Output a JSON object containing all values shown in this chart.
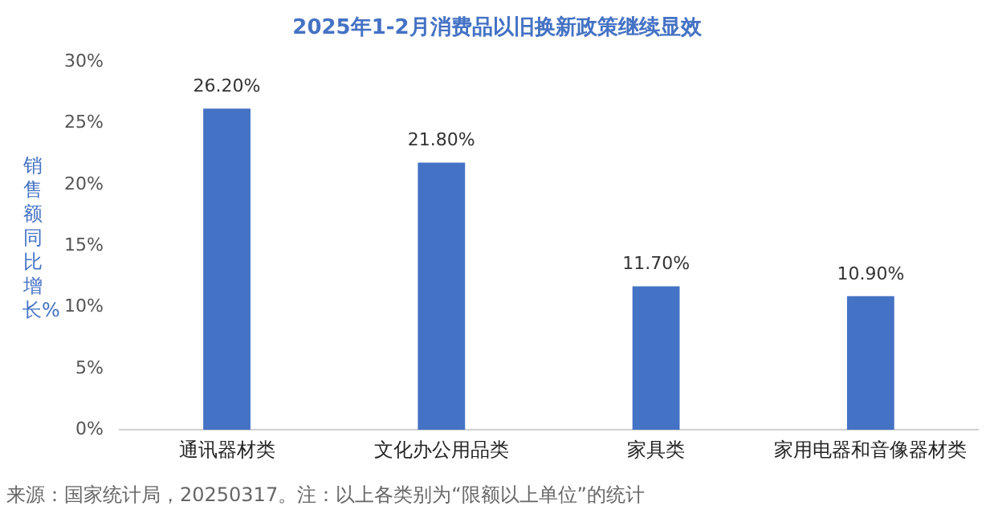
{
  "chart_data": {
    "type": "bar",
    "title": "2025年1-2月消费品以旧换新政策继续显效",
    "ylabel": "销售额同比增长%",
    "categories": [
      "通讯器材类",
      "文化办公用品类",
      "家具类",
      "家用电器和音像器材类"
    ],
    "values": [
      26.2,
      21.8,
      11.7,
      10.9
    ],
    "value_labels": [
      "26.20%",
      "21.80%",
      "11.70%",
      "10.90%"
    ],
    "color": "#4472c4",
    "ylim": [
      0,
      30
    ],
    "yticks": [
      {
        "value": 0,
        "label": "0%"
      },
      {
        "value": 5,
        "label": "5%"
      },
      {
        "value": 10,
        "label": "10%"
      },
      {
        "value": 15,
        "label": "15%"
      },
      {
        "value": 20,
        "label": "20%"
      },
      {
        "value": 25,
        "label": "25%"
      },
      {
        "value": 30,
        "label": "30%"
      }
    ],
    "grid": false,
    "legend": false,
    "annotations": [
      "来源：国家统计局，20250317。注：以上各类别为“限额以上单位”的统计"
    ]
  }
}
